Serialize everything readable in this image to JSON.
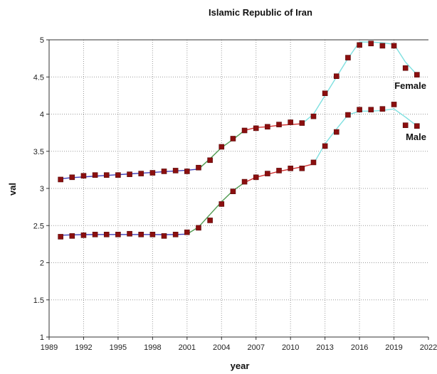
{
  "chart_data": {
    "type": "line",
    "title": "Islamic Republic of Iran",
    "xlabel": "year",
    "ylabel": "val",
    "xlim": [
      1989,
      2022
    ],
    "ylim": [
      1,
      5
    ],
    "xticks": [
      "1989",
      "1992",
      "1995",
      "1998",
      "2001",
      "2004",
      "2007",
      "2010",
      "2013",
      "2016",
      "2019",
      "2022"
    ],
    "yticks": [
      "1",
      "1.5",
      "2",
      "2.5",
      "3",
      "3.5",
      "4",
      "4.5",
      "5"
    ],
    "grid": true,
    "x": [
      1990,
      1991,
      1992,
      1993,
      1994,
      1995,
      1996,
      1997,
      1998,
      1999,
      2000,
      2001,
      2002,
      2003,
      2004,
      2005,
      2006,
      2007,
      2008,
      2009,
      2010,
      2011,
      2012,
      2013,
      2014,
      2015,
      2016,
      2017,
      2018,
      2019,
      2020,
      2021
    ],
    "series": [
      {
        "name": "Female",
        "values": [
          3.12,
          3.15,
          3.17,
          3.18,
          3.18,
          3.18,
          3.19,
          3.2,
          3.21,
          3.23,
          3.24,
          3.23,
          3.28,
          3.38,
          3.56,
          3.67,
          3.78,
          3.81,
          3.83,
          3.86,
          3.89,
          3.88,
          3.97,
          4.28,
          4.51,
          4.76,
          4.93,
          4.95,
          4.92,
          4.92,
          4.62,
          4.53
        ],
        "trend": [
          3.13,
          3.145,
          3.155,
          3.165,
          3.175,
          3.185,
          3.195,
          3.205,
          3.215,
          3.225,
          3.235,
          3.245,
          3.26,
          3.4,
          3.55,
          3.66,
          3.78,
          3.82,
          3.83,
          3.85,
          3.86,
          3.87,
          4.0,
          4.25,
          4.5,
          4.75,
          4.97,
          4.97,
          4.96,
          4.94,
          4.7,
          4.53
        ],
        "seg_colors": [
          "#3f3fb8",
          "#3f3fb8",
          "#3f3fb8",
          "#3f3fb8",
          "#3f3fb8",
          "#3f3fb8",
          "#3f3fb8",
          "#3f3fb8",
          "#3f3fb8",
          "#3f3fb8",
          "#3f3fb8",
          "#3f3fb8",
          "#4f9a4f",
          "#4f9a4f",
          "#4f9a4f",
          "#4f9a4f",
          "#d03030",
          "#d03030",
          "#d03030",
          "#d03030",
          "#d03030",
          "#7ee0e0",
          "#7ee0e0",
          "#7ee0e0",
          "#7ee0e0",
          "#7ee0e0",
          "#7ee0e0",
          "#7ee0e0",
          "#7ee0e0",
          "#7ee0e0",
          "#7ee0e0"
        ]
      },
      {
        "name": "Male",
        "values": [
          2.35,
          2.36,
          2.37,
          2.38,
          2.38,
          2.38,
          2.39,
          2.38,
          2.38,
          2.36,
          2.38,
          2.41,
          2.47,
          2.57,
          2.79,
          2.96,
          3.09,
          3.15,
          3.2,
          3.24,
          3.27,
          3.27,
          3.35,
          3.57,
          3.76,
          3.99,
          4.06,
          4.06,
          4.07,
          4.13,
          3.85,
          3.84
        ],
        "trend": [
          2.37,
          2.375,
          2.378,
          2.38,
          2.38,
          2.38,
          2.38,
          2.38,
          2.38,
          2.378,
          2.38,
          2.385,
          2.48,
          2.65,
          2.82,
          2.97,
          3.08,
          3.15,
          3.19,
          3.23,
          3.26,
          3.29,
          3.33,
          3.6,
          3.8,
          3.99,
          4.04,
          4.04,
          4.05,
          4.07,
          3.96,
          3.84
        ],
        "seg_colors": [
          "#3f3fb8",
          "#3f3fb8",
          "#3f3fb8",
          "#3f3fb8",
          "#3f3fb8",
          "#3f3fb8",
          "#3f3fb8",
          "#3f3fb8",
          "#3f3fb8",
          "#3f3fb8",
          "#3f3fb8",
          "#4f9a4f",
          "#4f9a4f",
          "#4f9a4f",
          "#4f9a4f",
          "#4f9a4f",
          "#d03030",
          "#d03030",
          "#d03030",
          "#d03030",
          "#d03030",
          "#d03030",
          "#7ee0e0",
          "#7ee0e0",
          "#7ee0e0",
          "#7ee0e0",
          "#7ee0e0",
          "#7ee0e0",
          "#7ee0e0",
          "#7ee0e0",
          "#7ee0e0"
        ]
      }
    ],
    "marker_color": "#8b0f0f"
  }
}
